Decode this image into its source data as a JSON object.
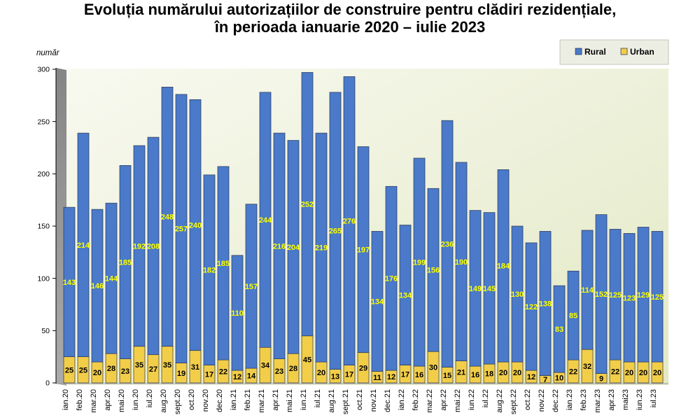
{
  "chart_data": {
    "type": "bar",
    "stacked": true,
    "title": [
      "Evoluția numărului autorizațiilor de construire pentru clădiri rezidențiale,",
      "în perioada ianuarie 2020 – iulie 2023"
    ],
    "xlabel": "",
    "ylabel": "număr",
    "ylim": [
      0,
      300
    ],
    "yticks": [
      0,
      50,
      100,
      150,
      200,
      250,
      300
    ],
    "grid": false,
    "legend": {
      "position": "top-right"
    },
    "categories": [
      "ian.20",
      "feb.20",
      "mar.20",
      "apr.20",
      "mai.20",
      "iun.20",
      "iul.20",
      "aug.20",
      "sept.20",
      "oct.20",
      "nov.20",
      "dec.20",
      "ian.21",
      "feb.21",
      "mar.21",
      "apr.21",
      "mai.21",
      "iun.21",
      "iul.21",
      "aug.21",
      "sept.21",
      "oct.21",
      "nov.21",
      "dec.21",
      "ian.22",
      "feb.22",
      "mar.22",
      "apr.22",
      "mai.22",
      "iun.22",
      "iul.22",
      "aug.22",
      "sept.22",
      "oct.22",
      "nov.22",
      "dec.22",
      "ian.23",
      "feb.23",
      "mar.23",
      "apr.23",
      "mai23",
      "iun.23",
      "iul.23"
    ],
    "series": [
      {
        "name": "Rural",
        "color": "#4a7ac9",
        "label_color": "#ffff00",
        "values": [
          143,
          214,
          146,
          144,
          185,
          192,
          208,
          248,
          257,
          240,
          182,
          185,
          110,
          157,
          244,
          216,
          204,
          252,
          219,
          265,
          276,
          197,
          134,
          176,
          134,
          199,
          156,
          236,
          190,
          149,
          145,
          184,
          130,
          122,
          138,
          83,
          85,
          114,
          152,
          125,
          123,
          129,
          125
        ]
      },
      {
        "name": "Urban",
        "color": "#f2cd48",
        "label_color": "#000000",
        "values": [
          25,
          25,
          20,
          28,
          23,
          35,
          27,
          35,
          19,
          31,
          17,
          22,
          12,
          14,
          34,
          23,
          28,
          45,
          20,
          13,
          17,
          29,
          11,
          12,
          17,
          16,
          30,
          15,
          21,
          16,
          18,
          20,
          20,
          12,
          7,
          10,
          22,
          32,
          9,
          22,
          20,
          20,
          20
        ]
      }
    ]
  }
}
